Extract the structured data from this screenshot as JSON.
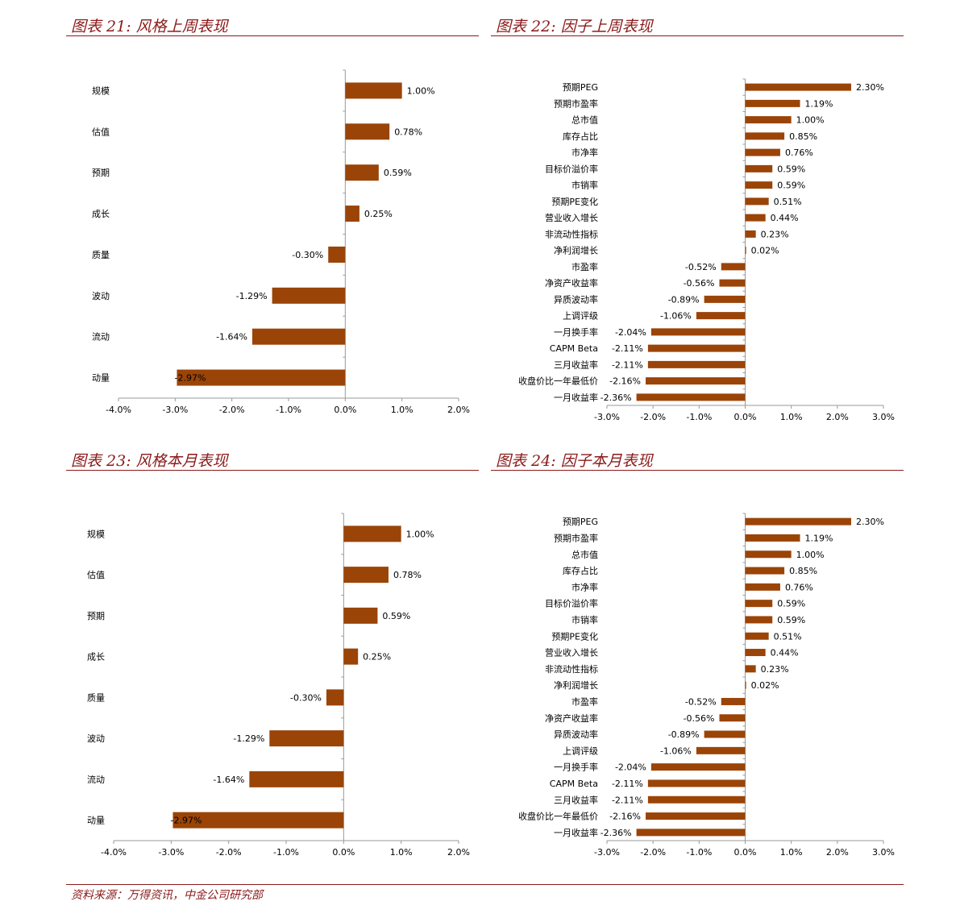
{
  "panels": [
    {
      "title": "图表 21:  风格上周表现"
    },
    {
      "title": "图表 22:  因子上周表现"
    },
    {
      "title": "图表 23:  风格本月表现"
    },
    {
      "title": "图表 24:  因子本月表现"
    }
  ],
  "footer": {
    "source": "资料来源：万得资讯，中金公司研究部"
  },
  "colors": {
    "bar": "#9b4407",
    "accent": "#8b1a1a",
    "axis": "#999999"
  },
  "chart_data": [
    {
      "type": "bar",
      "orientation": "horizontal",
      "categories": [
        "规模",
        "估值",
        "预期",
        "成长",
        "质量",
        "波动",
        "流动",
        "动量"
      ],
      "values": [
        1.0,
        0.78,
        0.59,
        0.25,
        -0.3,
        -1.29,
        -1.64,
        -2.97
      ],
      "value_labels": [
        "1.00%",
        "0.78%",
        "0.59%",
        "0.25%",
        "-0.30%",
        "-1.29%",
        "-1.64%",
        "-2.97%"
      ],
      "xlim": [
        -4.0,
        2.0
      ],
      "xticks": [
        "-4.0%",
        "-3.0%",
        "-2.0%",
        "-1.0%",
        "0.0%",
        "1.0%",
        "2.0%"
      ],
      "grid": false,
      "legend": "none"
    },
    {
      "type": "bar",
      "orientation": "horizontal",
      "categories": [
        "预期PEG",
        "预期市盈率",
        "总市值",
        "库存占比",
        "市净率",
        "目标价溢价率",
        "市销率",
        "预期PE变化",
        "营业收入增长",
        "非流动性指标",
        "净利润增长",
        "市盈率",
        "净资产收益率",
        "异质波动率",
        "上调评级",
        "一月换手率",
        "CAPM Beta",
        "三月收益率",
        "收盘价比一年最低价",
        "一月收益率"
      ],
      "values": [
        2.3,
        1.19,
        1.0,
        0.85,
        0.76,
        0.59,
        0.59,
        0.51,
        0.44,
        0.23,
        0.02,
        -0.52,
        -0.56,
        -0.89,
        -1.06,
        -2.04,
        -2.11,
        -2.11,
        -2.16,
        -2.36
      ],
      "value_labels": [
        "2.30%",
        "1.19%",
        "1.00%",
        "0.85%",
        "0.76%",
        "0.59%",
        "0.59%",
        "0.51%",
        "0.44%",
        "0.23%",
        "0.02%",
        "-0.52%",
        "-0.56%",
        "-0.89%",
        "-1.06%",
        "-2.04%",
        "-2.11%",
        "-2.11%",
        "-2.16%",
        "-2.36%"
      ],
      "xlim": [
        -3.0,
        3.0
      ],
      "xticks": [
        "-3.0%",
        "-2.0%",
        "-1.0%",
        "0.0%",
        "1.0%",
        "2.0%",
        "3.0%"
      ],
      "grid": false,
      "legend": "none"
    },
    {
      "type": "bar",
      "orientation": "horizontal",
      "categories": [
        "规模",
        "估值",
        "预期",
        "成长",
        "质量",
        "波动",
        "流动",
        "动量"
      ],
      "values": [
        1.0,
        0.78,
        0.59,
        0.25,
        -0.3,
        -1.29,
        -1.64,
        -2.97
      ],
      "value_labels": [
        "1.00%",
        "0.78%",
        "0.59%",
        "0.25%",
        "-0.30%",
        "-1.29%",
        "-1.64%",
        "-2.97%"
      ],
      "xlim": [
        -4.0,
        2.0
      ],
      "xticks": [
        "-4.0%",
        "-3.0%",
        "-2.0%",
        "-1.0%",
        "0.0%",
        "1.0%",
        "2.0%"
      ],
      "grid": false,
      "legend": "none"
    },
    {
      "type": "bar",
      "orientation": "horizontal",
      "categories": [
        "预期PEG",
        "预期市盈率",
        "总市值",
        "库存占比",
        "市净率",
        "目标价溢价率",
        "市销率",
        "预期PE变化",
        "营业收入增长",
        "非流动性指标",
        "净利润增长",
        "市盈率",
        "净资产收益率",
        "异质波动率",
        "上调评级",
        "一月换手率",
        "CAPM Beta",
        "三月收益率",
        "收盘价比一年最低价",
        "一月收益率"
      ],
      "values": [
        2.3,
        1.19,
        1.0,
        0.85,
        0.76,
        0.59,
        0.59,
        0.51,
        0.44,
        0.23,
        0.02,
        -0.52,
        -0.56,
        -0.89,
        -1.06,
        -2.04,
        -2.11,
        -2.11,
        -2.16,
        -2.36
      ],
      "value_labels": [
        "2.30%",
        "1.19%",
        "1.00%",
        "0.85%",
        "0.76%",
        "0.59%",
        "0.59%",
        "0.51%",
        "0.44%",
        "0.23%",
        "0.02%",
        "-0.52%",
        "-0.56%",
        "-0.89%",
        "-1.06%",
        "-2.04%",
        "-2.11%",
        "-2.11%",
        "-2.16%",
        "-2.36%"
      ],
      "xlim": [
        -3.0,
        3.0
      ],
      "xticks": [
        "-3.0%",
        "-2.0%",
        "-1.0%",
        "0.0%",
        "1.0%",
        "2.0%",
        "3.0%"
      ],
      "grid": false,
      "legend": "none"
    }
  ]
}
